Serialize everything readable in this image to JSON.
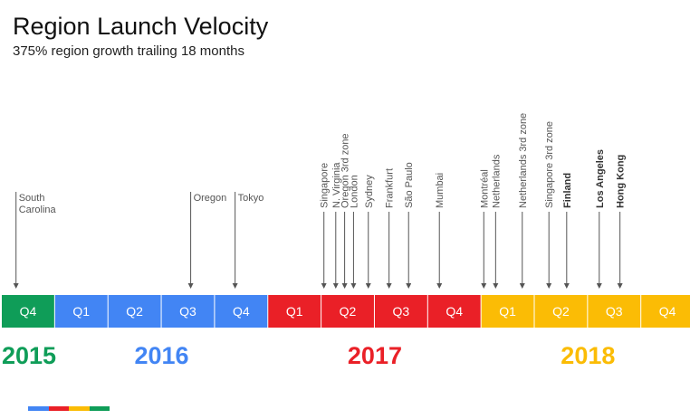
{
  "header": {
    "title": "Region Launch Velocity",
    "subtitle": "375% region growth trailing 18 months"
  },
  "colors": {
    "green": "#0f9d58",
    "blue": "#4285f4",
    "red": "#ea2027",
    "yellow": "#fbbc05",
    "label_gray": "#555555",
    "arrow_gray": "#555555"
  },
  "chart_data": {
    "type": "timeline",
    "quarters": [
      {
        "label": "Q4",
        "year": "2015"
      },
      {
        "label": "Q1",
        "year": "2016"
      },
      {
        "label": "Q2",
        "year": "2016"
      },
      {
        "label": "Q3",
        "year": "2016"
      },
      {
        "label": "Q4",
        "year": "2016"
      },
      {
        "label": "Q1",
        "year": "2017"
      },
      {
        "label": "Q2",
        "year": "2017"
      },
      {
        "label": "Q3",
        "year": "2017"
      },
      {
        "label": "Q4",
        "year": "2017"
      },
      {
        "label": "Q1",
        "year": "2018"
      },
      {
        "label": "Q2",
        "year": "2018"
      },
      {
        "label": "Q3",
        "year": "2018"
      },
      {
        "label": "Q4",
        "year": "2018"
      }
    ],
    "years": [
      {
        "label": "2015",
        "color": "#0f9d58"
      },
      {
        "label": "2016",
        "color": "#4285f4"
      },
      {
        "label": "2017",
        "color": "#ea2027"
      },
      {
        "label": "2018",
        "color": "#fbbc05"
      }
    ],
    "launches": [
      {
        "name": "South\nCarolina",
        "date": "2015-10-25",
        "orientation": "horizontal",
        "bold": false
      },
      {
        "name": "Oregon",
        "date": "2016-08-20",
        "orientation": "horizontal",
        "bold": false
      },
      {
        "name": "Tokyo",
        "date": "2016-11-05",
        "orientation": "horizontal",
        "bold": false
      },
      {
        "name": "Singapore",
        "date": "2017-04-05",
        "orientation": "vertical",
        "bold": false
      },
      {
        "name": "N. Virginia",
        "date": "2017-04-25",
        "orientation": "vertical",
        "bold": false
      },
      {
        "name": "Oregon  3rd zone",
        "date": "2017-05-10",
        "orientation": "vertical",
        "bold": false
      },
      {
        "name": "London",
        "date": "2017-05-25",
        "orientation": "vertical",
        "bold": false
      },
      {
        "name": "Sydney",
        "date": "2017-06-20",
        "orientation": "vertical",
        "bold": false
      },
      {
        "name": "Frankfurt",
        "date": "2017-07-25",
        "orientation": "vertical",
        "bold": false
      },
      {
        "name": "São Paulo",
        "date": "2017-08-28",
        "orientation": "vertical",
        "bold": false
      },
      {
        "name": "Mumbai",
        "date": "2017-10-20",
        "orientation": "vertical",
        "bold": false
      },
      {
        "name": "Montréal",
        "date": "2018-01-05",
        "orientation": "vertical",
        "bold": false
      },
      {
        "name": "Netherlands",
        "date": "2018-01-25",
        "orientation": "vertical",
        "bold": false
      },
      {
        "name": "Netherlands 3rd zone",
        "date": "2018-03-10",
        "orientation": "vertical",
        "bold": false
      },
      {
        "name": "Singapore 3rd zone",
        "date": "2018-04-25",
        "orientation": "vertical",
        "bold": false
      },
      {
        "name": "Finland",
        "date": "2018-05-25",
        "orientation": "vertical",
        "bold": true
      },
      {
        "name": "Los Angeles",
        "date": "2018-07-20",
        "orientation": "vertical",
        "bold": true
      },
      {
        "name": "Hong Kong",
        "date": "2018-08-25",
        "orientation": "vertical",
        "bold": true
      }
    ]
  }
}
